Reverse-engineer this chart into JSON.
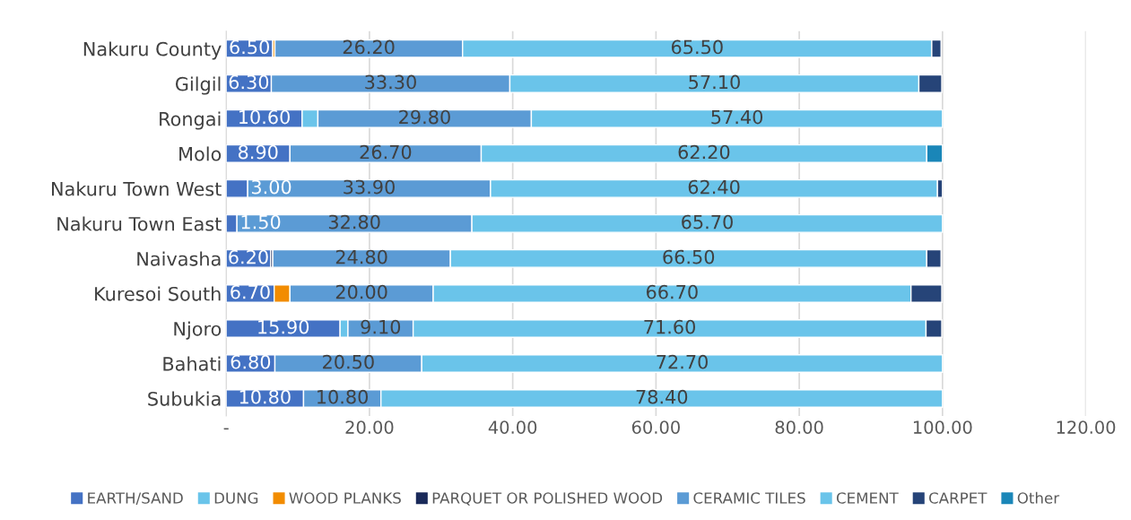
{
  "chart_data": {
    "type": "bar",
    "orientation": "horizontal",
    "stacked": true,
    "categories": [
      "Nakuru County",
      "Gilgil",
      "Rongai",
      "Molo",
      "Nakuru Town West",
      "Nakuru Town East",
      "Naivasha",
      "Kuresoi South",
      "Njoro",
      "Bahati",
      "Subukia"
    ],
    "series": [
      {
        "name": "EARTH/SAND",
        "color": "#4472c4",
        "values": [
          6.5,
          6.3,
          10.6,
          8.9,
          3.0,
          1.5,
          6.2,
          6.7,
          15.9,
          6.8,
          10.8
        ],
        "value_labels": [
          "6.50",
          "6.30",
          "10.60",
          "8.90",
          "3.00",
          "1.50",
          "6.20",
          "6.70",
          "15.90",
          "6.80",
          "10.80"
        ]
      },
      {
        "name": "DUNG",
        "color": "#6ac4ea",
        "values": [
          null,
          null,
          2.2,
          null,
          null,
          null,
          null,
          null,
          1.1,
          null,
          null
        ]
      },
      {
        "name": "WOOD PLANKS",
        "color": "#f28c00",
        "values": [
          0.3,
          null,
          null,
          null,
          null,
          null,
          null,
          2.2,
          null,
          null,
          null
        ]
      },
      {
        "name": "PARQUET OR POLISHED WOOD",
        "color": "#1a2a5a",
        "values": [
          null,
          null,
          null,
          null,
          null,
          null,
          0.3,
          null,
          null,
          null,
          null
        ]
      },
      {
        "name": "CERAMIC TILES",
        "color": "#5b9bd5",
        "values": [
          26.2,
          33.3,
          29.8,
          26.7,
          33.9,
          32.8,
          24.8,
          20.0,
          9.1,
          20.5,
          10.8
        ],
        "value_labels": [
          "26.20",
          "33.30",
          "29.80",
          "26.70",
          "33.90",
          "32.80",
          "24.80",
          "20.00",
          "9.10",
          "20.50",
          "10.80"
        ]
      },
      {
        "name": "CEMENT",
        "color": "#6ac4ea",
        "values": [
          65.5,
          57.1,
          57.4,
          62.2,
          62.4,
          65.7,
          66.5,
          66.7,
          71.6,
          72.7,
          78.4
        ],
        "value_labels": [
          "65.50",
          "57.10",
          "57.40",
          "62.20",
          "62.40",
          "65.70",
          "66.50",
          "66.70",
          "71.60",
          "72.70",
          "78.40"
        ]
      },
      {
        "name": "CARPET",
        "color": "#264478",
        "values": [
          1.3,
          3.2,
          null,
          null,
          0.7,
          null,
          2.0,
          4.3,
          2.2,
          null,
          null
        ]
      },
      {
        "name": "Other",
        "color": "#1a86b8",
        "values": [
          null,
          null,
          null,
          2.2,
          null,
          null,
          null,
          null,
          null,
          null,
          null
        ]
      }
    ],
    "xlim": [
      0,
      120
    ],
    "xticks": [
      {
        "value": 0,
        "label": "-"
      },
      {
        "value": 20,
        "label": "20.00"
      },
      {
        "value": 40,
        "label": "40.00"
      },
      {
        "value": 60,
        "label": "60.00"
      },
      {
        "value": 80,
        "label": "80.00"
      },
      {
        "value": 100,
        "label": "100.00"
      },
      {
        "value": 120,
        "label": "120.00"
      }
    ],
    "grid": "x",
    "legend": "bottom"
  }
}
